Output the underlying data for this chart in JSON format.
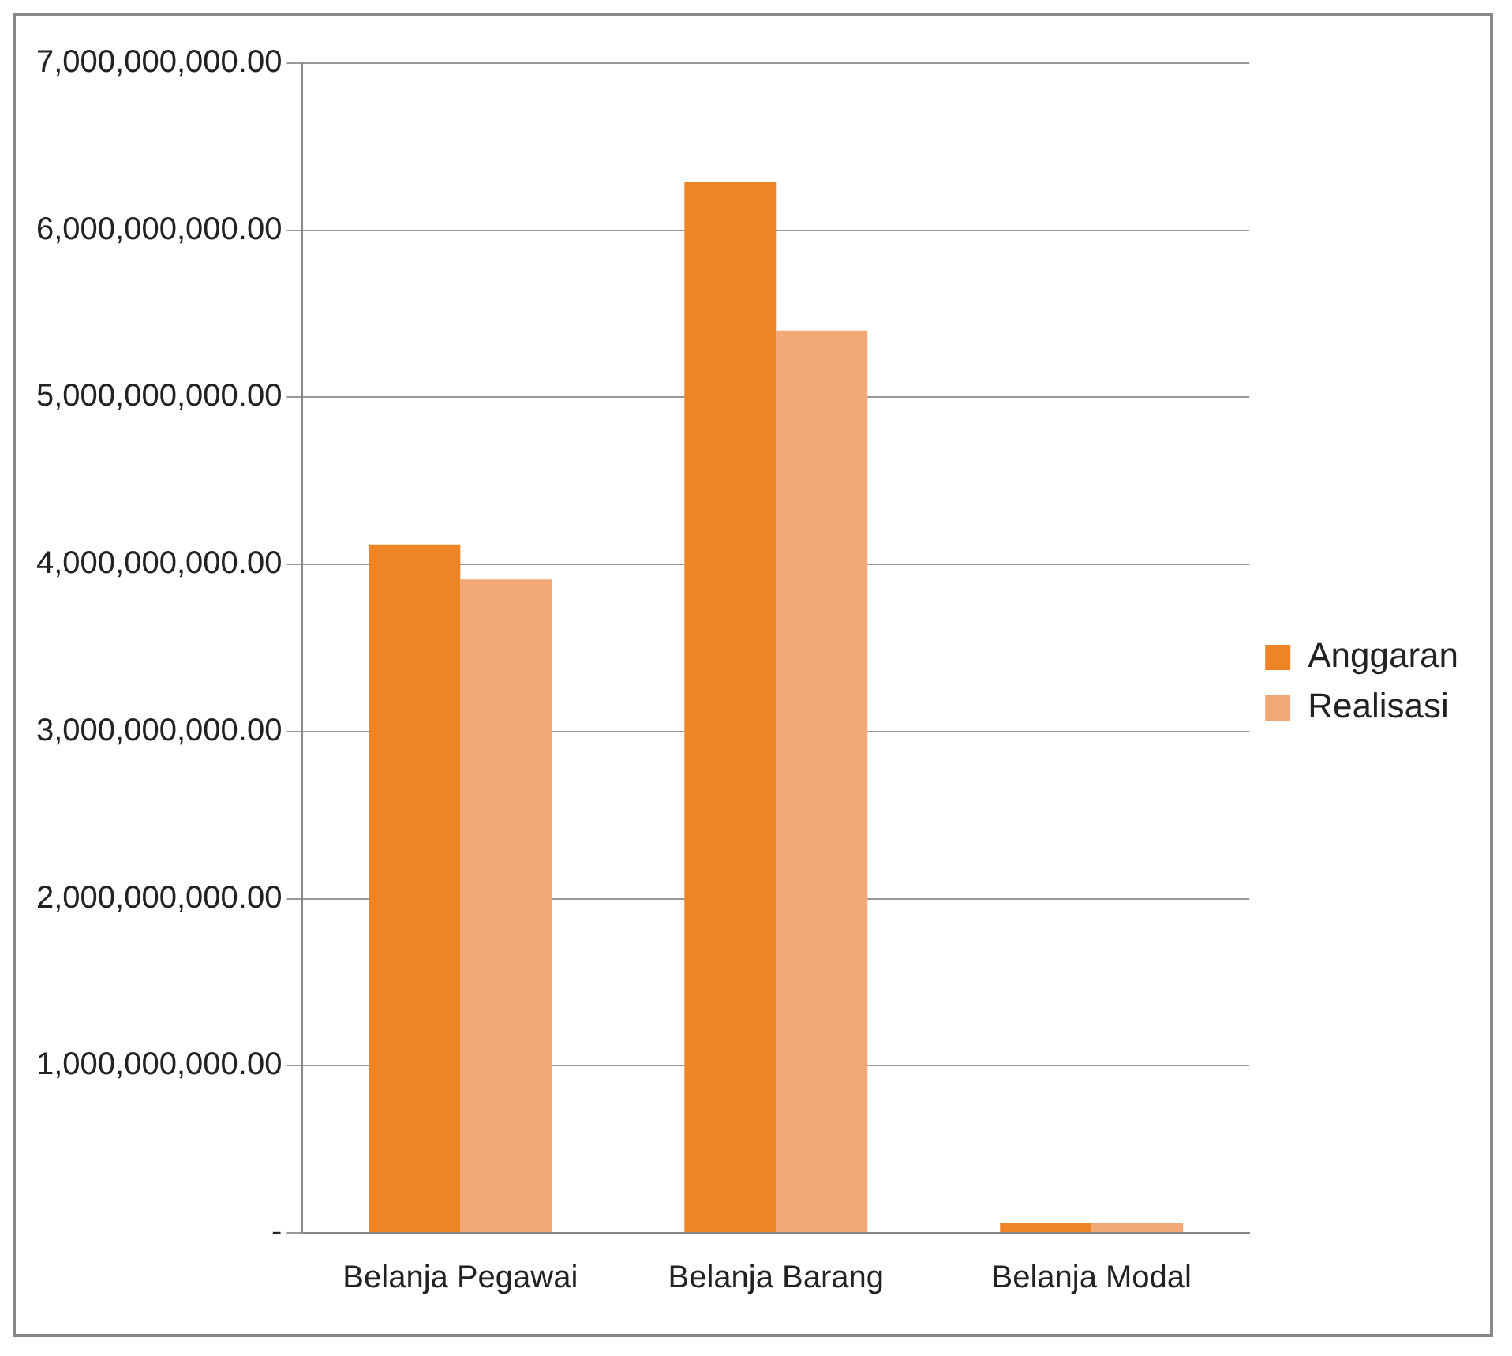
{
  "chart_data": {
    "type": "bar",
    "categories": [
      "Belanja Pegawai",
      "Belanja Barang",
      "Belanja Modal"
    ],
    "series": [
      {
        "name": "Anggaran",
        "color": "#ee8426",
        "values": [
          4120000000,
          6290000000,
          60000000
        ]
      },
      {
        "name": "Realisasi",
        "color": "#f2a877",
        "values": [
          3910000000,
          5400000000,
          60000000
        ]
      }
    ],
    "ylim": [
      0,
      7000000000
    ],
    "yticks": [
      {
        "value": 0,
        "label": "-"
      },
      {
        "value": 1000000000,
        "label": "1,000,000,000.00"
      },
      {
        "value": 2000000000,
        "label": "2,000,000,000.00"
      },
      {
        "value": 3000000000,
        "label": "3,000,000,000.00"
      },
      {
        "value": 4000000000,
        "label": "4,000,000,000.00"
      },
      {
        "value": 5000000000,
        "label": "5,000,000,000.00"
      },
      {
        "value": 6000000000,
        "label": "6,000,000,000.00"
      },
      {
        "value": 7000000000,
        "label": "7,000,000,000.00"
      }
    ],
    "grid": "y",
    "legend": "right"
  }
}
